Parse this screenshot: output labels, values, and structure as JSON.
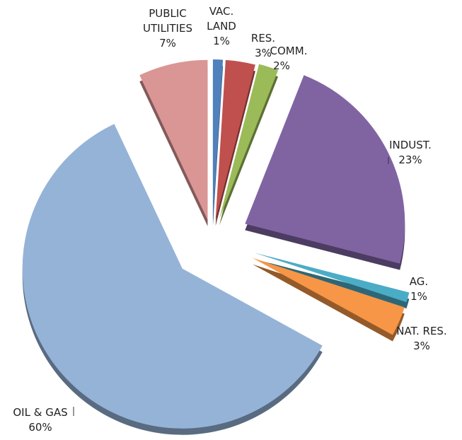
{
  "chart_data": {
    "type": "pie",
    "categories": [
      "VAC. LAND",
      "RES.",
      "COMM.",
      "INDUST.",
      "AG.",
      "NAT. RES.",
      "OIL & GAS",
      "PUBLIC UTILITIES"
    ],
    "values": [
      1,
      3,
      2,
      23,
      1,
      3,
      60,
      7
    ],
    "value_labels": [
      "1%",
      "3%",
      "2%",
      "23%",
      "1%",
      "3%",
      "60%",
      "7%"
    ],
    "colors": [
      "#4f81bd",
      "#c0504d",
      "#9bbb59",
      "#8064a2",
      "#4bacc6",
      "#f79646",
      "#95b3d7",
      "#d99694"
    ]
  }
}
